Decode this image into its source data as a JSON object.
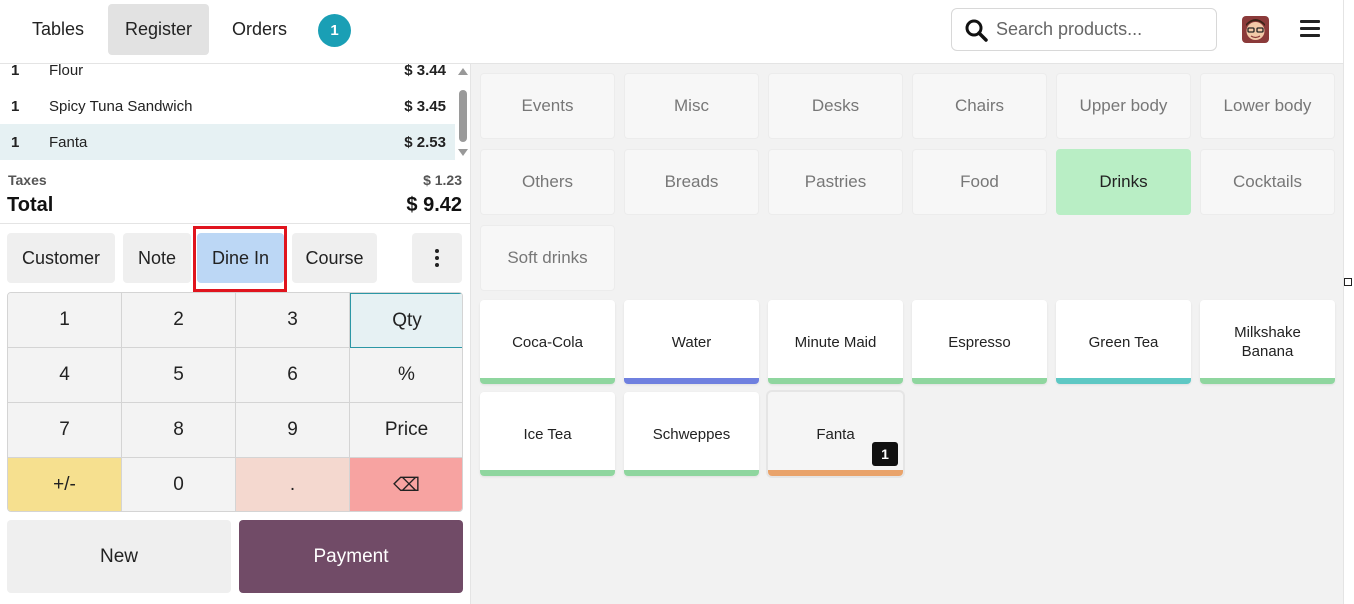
{
  "navbar": {
    "tabs": [
      {
        "label": "Tables",
        "active": false
      },
      {
        "label": "Register",
        "active": true
      },
      {
        "label": "Orders",
        "active": false
      }
    ],
    "orders_badge": "1",
    "search": {
      "placeholder": "Search products...",
      "value": ""
    },
    "icons": {
      "search": "search-icon",
      "avatar": "user-avatar",
      "menu": "hamburger-menu-icon"
    }
  },
  "order": {
    "lines": [
      {
        "qty": "1",
        "name": "Flour",
        "price": "$ 3.44",
        "selected": false
      },
      {
        "qty": "1",
        "name": "Spicy Tuna Sandwich",
        "price": "$ 3.45",
        "selected": false
      },
      {
        "qty": "1",
        "name": "Fanta",
        "price": "$ 2.53",
        "selected": true
      }
    ],
    "taxes_label": "Taxes",
    "taxes_value": "$ 1.23",
    "total_label": "Total",
    "total_value": "$ 9.42"
  },
  "controls": {
    "customer": "Customer",
    "note": "Note",
    "dine_in": "Dine In",
    "course": "Course",
    "more_icon": "kebab-menu-icon"
  },
  "numpad": {
    "keys": [
      "1",
      "2",
      "3",
      "Qty",
      "4",
      "5",
      "6",
      "%",
      "7",
      "8",
      "9",
      "Price",
      "+/-",
      "0",
      ".",
      "⌫"
    ],
    "active_mode": "Qty"
  },
  "actions": {
    "new": "New",
    "payment": "Payment"
  },
  "categories": [
    {
      "label": "Events",
      "active": false
    },
    {
      "label": "Misc",
      "active": false
    },
    {
      "label": "Desks",
      "active": false
    },
    {
      "label": "Chairs",
      "active": false
    },
    {
      "label": "Upper body",
      "active": false
    },
    {
      "label": "Lower body",
      "active": false
    },
    {
      "label": "Others",
      "active": false
    },
    {
      "label": "Breads",
      "active": false
    },
    {
      "label": "Pastries",
      "active": false
    },
    {
      "label": "Food",
      "active": false
    },
    {
      "label": "Drinks",
      "active": true
    },
    {
      "label": "Cocktails",
      "active": false
    },
    {
      "label": "Soft drinks",
      "active": false
    }
  ],
  "products": [
    {
      "name": "Coca-Cola",
      "color": "#8fd69f"
    },
    {
      "name": "Water",
      "color": "#6f80df"
    },
    {
      "name": "Minute Maid",
      "color": "#8fd69f"
    },
    {
      "name": "Espresso",
      "color": "#8fd69f"
    },
    {
      "name": "Green Tea",
      "color": "#5ec8c4"
    },
    {
      "name": "Milkshake Banana",
      "color": "#8fd69f"
    },
    {
      "name": "Ice Tea",
      "color": "#8fd69f"
    },
    {
      "name": "Schweppes",
      "color": "#8fd69f"
    },
    {
      "name": "Fanta",
      "color": "#e9a36b",
      "qty_badge": "1",
      "selected": true
    }
  ],
  "colors": {
    "accent": "#1a9fb5",
    "payment": "#714b67",
    "active_category": "#b9eec5",
    "highlight": "#e0141e"
  }
}
